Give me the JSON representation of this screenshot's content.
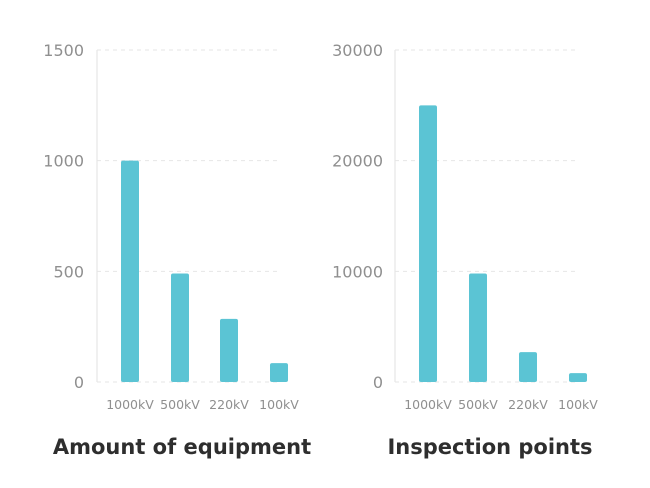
{
  "chart_data": [
    {
      "type": "bar",
      "title": "Amount of equipment",
      "categories": [
        "1000kV",
        "500kV",
        "220kV",
        "100kV"
      ],
      "values": [
        1000,
        490,
        285,
        85
      ],
      "yticks": [
        0,
        500,
        1000,
        1500
      ],
      "ylim": [
        0,
        1500
      ],
      "xlabel": "",
      "ylabel": "",
      "grid": true,
      "color": "#5bc4d4"
    },
    {
      "type": "bar",
      "title": "Inspection points",
      "categories": [
        "1000kV",
        "500kV",
        "220kV",
        "100kV"
      ],
      "values": [
        25000,
        9800,
        2700,
        800
      ],
      "yticks": [
        0,
        10000,
        20000,
        30000
      ],
      "ylim": [
        0,
        30000
      ],
      "xlabel": "",
      "ylabel": "",
      "grid": true,
      "color": "#5bc4d4"
    }
  ]
}
